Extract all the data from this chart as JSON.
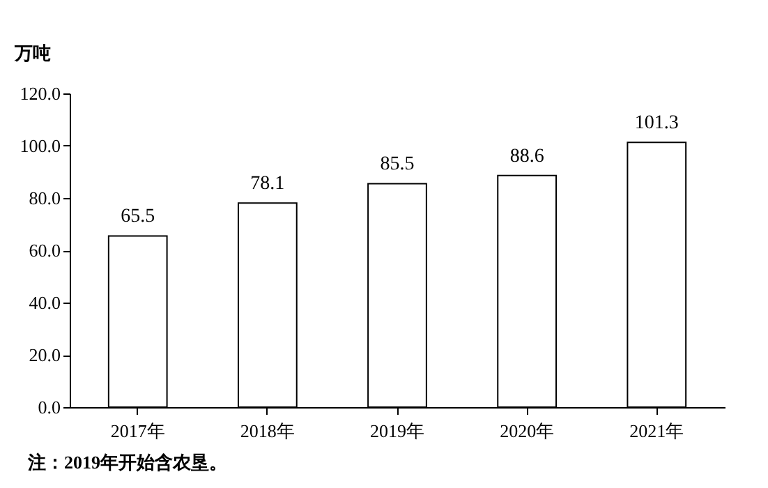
{
  "chart_data": {
    "type": "bar",
    "ylabel": "万吨",
    "categories": [
      "2017年",
      "2018年",
      "2019年",
      "2020年",
      "2021年"
    ],
    "values": [
      65.5,
      78.1,
      85.5,
      88.6,
      101.3
    ],
    "color": "#ffffff",
    "ylim": [
      0,
      120
    ],
    "yticks": [
      {
        "value": 0,
        "label": "0.0"
      },
      {
        "value": 20,
        "label": "20.0"
      },
      {
        "value": 40,
        "label": "40.0"
      },
      {
        "value": 60,
        "label": "60.0"
      },
      {
        "value": 80,
        "label": "80.0"
      },
      {
        "value": 100,
        "label": "100.0"
      },
      {
        "value": 120,
        "label": "120.0"
      }
    ],
    "data_labels": true,
    "annotations": [
      "注：2019年开始含农垦。"
    ]
  }
}
